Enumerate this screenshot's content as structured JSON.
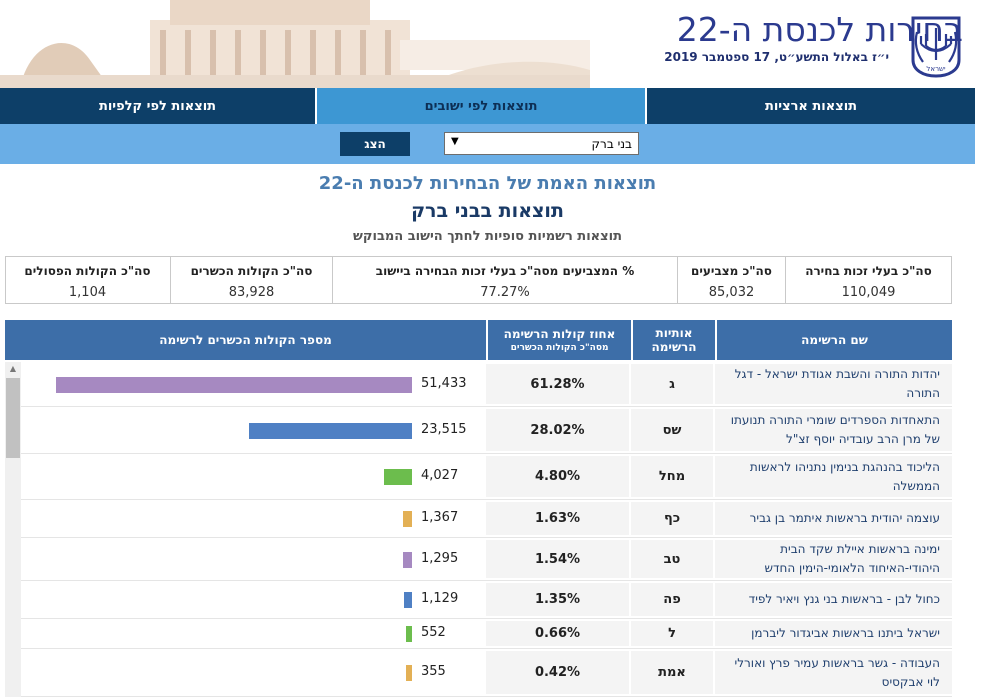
{
  "header": {
    "site_title": "בחירות לכנסת ה-22",
    "date": "י״ז באלול התשע״ט, 17 ספטמבר 2019",
    "emblem_caption": "ישראל"
  },
  "tabs": [
    {
      "label": "תוצאות ארציות"
    },
    {
      "label": "תוצאות לפי ישובים"
    },
    {
      "label": "תוצאות לפי קלפיות"
    }
  ],
  "filter": {
    "city_selected": "בני ברק",
    "show_label": "הצג"
  },
  "titles": {
    "main": "תוצאות האמת של הבחירות לכנסת ה-22",
    "city": "תוצאות בבני ברק",
    "sub": "תוצאות רשמיות סופיות לחתך הישוב המבוקש"
  },
  "stats": {
    "eligible": {
      "label": "סה\"כ בעלי זכות בחירה",
      "value": "110,049"
    },
    "voted": {
      "label": "סה\"כ מצביעים",
      "value": "85,032"
    },
    "pct": {
      "label": "% המצביעים מסה\"כ בעלי זכות הבחירה ביישוב",
      "value": "77.27%"
    },
    "valid": {
      "label": "סה\"כ הקולות הכשרים",
      "value": "83,928"
    },
    "invalid": {
      "label": "סה\"כ הקולות הפסולים",
      "value": "1,104"
    }
  },
  "table": {
    "headers": {
      "name": "שם הרשימה",
      "letters_1": "אותיות",
      "letters_2": "הרשימה",
      "pct": "אחוז קולות הרשימה",
      "pct_sub": "מסה\"כ הקולות הכשרים",
      "votes": "מספר הקולות הכשרים לרשימה"
    },
    "rows": [
      {
        "name": "יהדות התורה והשבת אגודת ישראל - דגל התורה",
        "letters": "ג",
        "pct": "61.28%",
        "votes": "51,433",
        "votes_num": 51433,
        "color": "#a689c1"
      },
      {
        "name": "התאחדות הספרדים שומרי התורה תנועתו של מרן הרב עובדיה יוסף זצ\"ל",
        "letters": "שס",
        "pct": "28.02%",
        "votes": "23,515",
        "votes_num": 23515,
        "color": "#4f80c4"
      },
      {
        "name": "הליכוד בהנהגת בנימין נתניהו לראשות הממשלה",
        "letters": "מחל",
        "pct": "4.80%",
        "votes": "4,027",
        "votes_num": 4027,
        "color": "#6cbd4d"
      },
      {
        "name": "עוצמה יהודית בראשות איתמר בן גביר",
        "letters": "כף",
        "pct": "1.63%",
        "votes": "1,367",
        "votes_num": 1367,
        "color": "#e3b055"
      },
      {
        "name": "ימינה בראשות איילת שקד הבית היהודי-האיחוד הלאומי-הימין החדש",
        "letters": "טב",
        "pct": "1.54%",
        "votes": "1,295",
        "votes_num": 1295,
        "color": "#a689c1"
      },
      {
        "name": "כחול לבן - בראשות בני גנץ ויאיר לפיד",
        "letters": "פה",
        "pct": "1.35%",
        "votes": "1,129",
        "votes_num": 1129,
        "color": "#4f80c4"
      },
      {
        "name": "ישראל ביתנו בראשות אביגדור ליברמן",
        "letters": "ל",
        "pct": "0.66%",
        "votes": "552",
        "votes_num": 552,
        "color": "#6cbd4d"
      },
      {
        "name": "העבודה - גשר בראשות עמיר פרץ ואורלי לוי אבקסיס",
        "letters": "אמת",
        "pct": "0.42%",
        "votes": "355",
        "votes_num": 355,
        "color": "#e3b055"
      }
    ]
  }
}
